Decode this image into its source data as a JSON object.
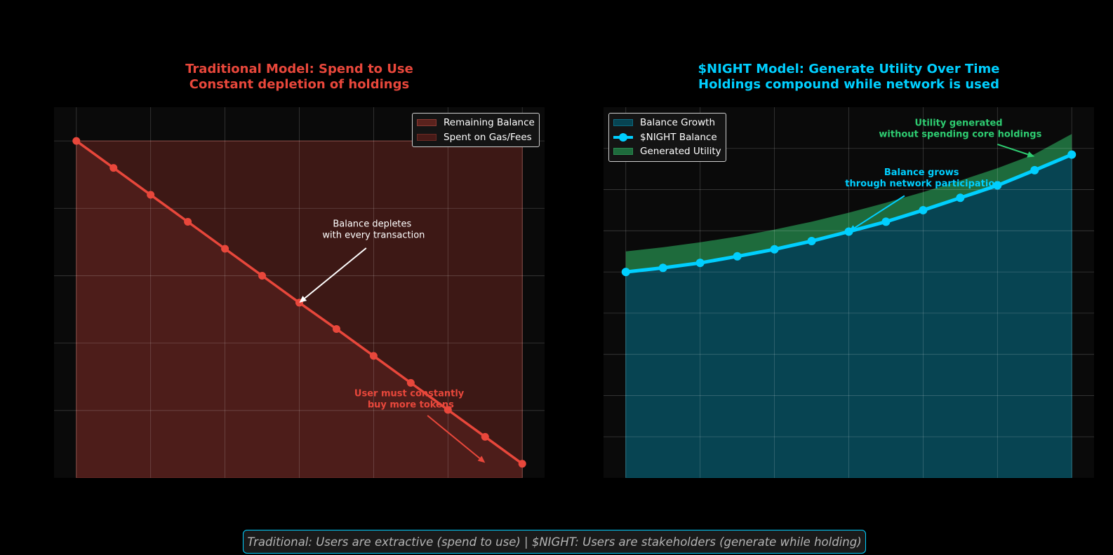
{
  "footer_text": "Traditional: Users are extractive (spend to use) | $NIGHT: Users are stakeholders (generate while holding)",
  "colors": {
    "red": "#e8473b",
    "cyan": "#00cfff",
    "green": "#2ecc71",
    "background": "#000000",
    "axes": "#0a0a0a"
  },
  "chart_data": [
    {
      "type": "line",
      "title_line1": "Traditional Model: Spend to Use",
      "title_line2": "Constant depletion of holdings",
      "xlabel": "",
      "ylabel": "",
      "grid": true,
      "legend_position": "top-right",
      "legend": [
        "Remaining Balance",
        "Spent on Gas/Fees"
      ],
      "xlim": [
        -0.6,
        12.6
      ],
      "ylim": [
        0,
        110
      ],
      "x": [
        0,
        1,
        2,
        3,
        4,
        5,
        6,
        7,
        8,
        9,
        10,
        11,
        12
      ],
      "series": [
        {
          "name": "Remaining Balance",
          "values": [
            100,
            92,
            84,
            76,
            68,
            60,
            52,
            44.2,
            36.2,
            28.2,
            20.2,
            12.2,
            4.2
          ]
        }
      ],
      "spent_fill_top": 100,
      "annotations": [
        {
          "text_line1": "Balance depletes",
          "text_line2": "with every transaction",
          "x": 6,
          "y": 52
        },
        {
          "text_line1": "User must constantly",
          "text_line2": "buy more tokens",
          "x": 11,
          "y": 4.5
        }
      ]
    },
    {
      "type": "area",
      "title_line1": "$NIGHT Model: Generate Utility Over Time",
      "title_line2": "Holdings compound while network is used",
      "xlabel": "",
      "ylabel": "",
      "grid": true,
      "legend_position": "top-left",
      "legend": [
        "Balance Growth",
        "$NIGHT Balance",
        "Generated Utility"
      ],
      "xlim": [
        -0.6,
        12.6
      ],
      "ylim": [
        0,
        9
      ],
      "x": [
        0,
        1,
        2,
        3,
        4,
        5,
        6,
        7,
        8,
        9,
        10,
        11,
        12
      ],
      "series": [
        {
          "name": "$NIGHT Balance",
          "values": [
            5.0,
            5.1,
            5.22,
            5.38,
            5.55,
            5.75,
            5.98,
            6.22,
            6.5,
            6.8,
            7.1,
            7.47,
            7.85
          ]
        },
        {
          "name": "Generated Utility",
          "values": [
            5.5,
            5.6,
            5.72,
            5.86,
            6.03,
            6.22,
            6.44,
            6.68,
            6.94,
            7.22,
            7.52,
            7.86,
            8.35
          ]
        }
      ],
      "annotations": [
        {
          "text_line1": "Balance grows",
          "text_line2": "through network participation",
          "x": 6,
          "y": 5.98
        },
        {
          "text_line1": "Utility generated",
          "text_line2": "without spending core holdings",
          "x": 11,
          "y": 7.8
        }
      ]
    }
  ]
}
